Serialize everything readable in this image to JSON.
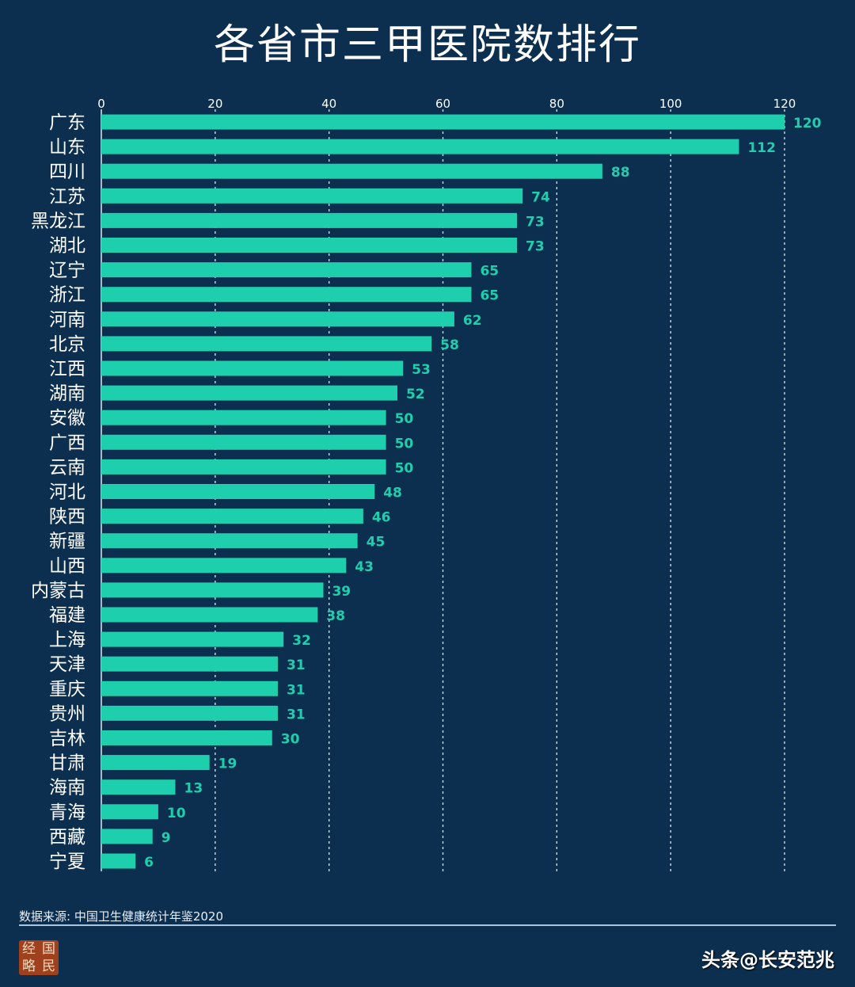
{
  "chart_data": {
    "type": "bar",
    "orientation": "horizontal",
    "title": "各省市三甲医院数排行",
    "categories": [
      "广东",
      "山东",
      "四川",
      "江苏",
      "黑龙江",
      "湖北",
      "辽宁",
      "浙江",
      "河南",
      "北京",
      "江西",
      "湖南",
      "安徽",
      "广西",
      "云南",
      "河北",
      "陕西",
      "新疆",
      "山西",
      "内蒙古",
      "福建",
      "上海",
      "天津",
      "重庆",
      "贵州",
      "吉林",
      "甘肃",
      "海南",
      "青海",
      "西藏",
      "宁夏"
    ],
    "values": [
      120,
      112,
      88,
      74,
      73,
      73,
      65,
      65,
      62,
      58,
      53,
      52,
      50,
      50,
      50,
      48,
      46,
      45,
      43,
      39,
      38,
      32,
      31,
      31,
      31,
      30,
      19,
      13,
      10,
      9,
      6
    ],
    "xlim": [
      0,
      120
    ],
    "xticks": [
      0,
      20,
      40,
      60,
      80,
      100,
      120
    ],
    "xtick_position": "top",
    "grid": "vertical dotted",
    "data_labels": true,
    "bar_color": "#1ecfae",
    "background": "#0c2f50"
  },
  "footer": {
    "source": "数据来源: 中国卫生健康统计年鉴2020",
    "logo_chars": [
      "经",
      "国",
      "略",
      "民"
    ],
    "credit": "头条@长安范兆"
  }
}
